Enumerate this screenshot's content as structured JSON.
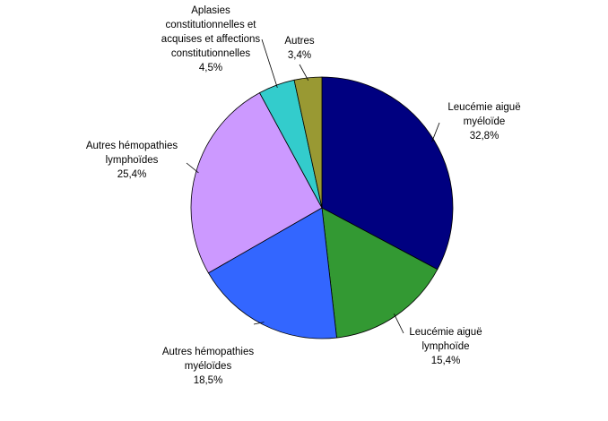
{
  "chart_data": {
    "type": "pie",
    "categories": [
      "Leucémie aiguë myéloïde",
      "Leucémie aiguë lymphoïde",
      "Autres hémopathies myéloïdes",
      "Autres hémopathies lymphoïdes",
      "Aplasies constitutionnelles et acquises et affections constitutionnelles",
      "Autres"
    ],
    "values": [
      32.8,
      15.4,
      18.5,
      25.4,
      4.5,
      3.4
    ],
    "value_labels": [
      "32,8%",
      "15,4%",
      "18,5%",
      "25,4%",
      "4,5%",
      "3,4%"
    ],
    "colors": [
      "#000080",
      "#339933",
      "#3366ff",
      "#cc99ff",
      "#33cccc",
      "#999933"
    ]
  }
}
